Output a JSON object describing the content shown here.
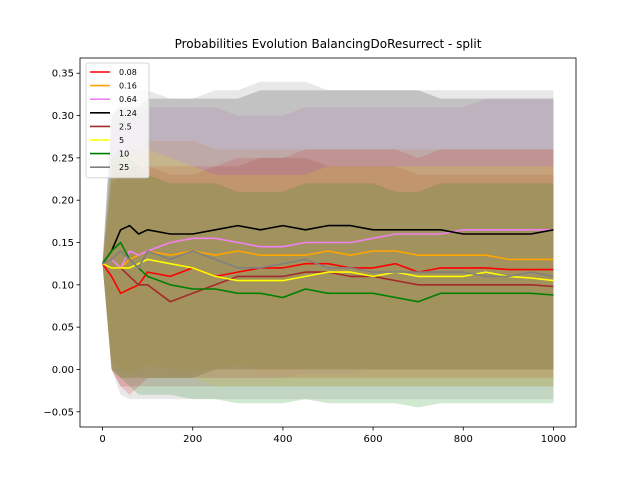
{
  "chart_data": {
    "type": "line",
    "title": "Probabilities Evolution BalancingDoResurrect  - split",
    "xlabel": "",
    "ylabel": "",
    "xlim": [
      -50,
      1050
    ],
    "ylim": [
      -0.068,
      0.368
    ],
    "xticks": [
      0,
      200,
      400,
      600,
      800,
      1000
    ],
    "xtick_labels": [
      "0",
      "200",
      "400",
      "600",
      "800",
      "1000"
    ],
    "yticks": [
      -0.05,
      0.0,
      0.05,
      0.1,
      0.15,
      0.2,
      0.25,
      0.3,
      0.35
    ],
    "ytick_labels": [
      "−0.05",
      "0.00",
      "0.05",
      "0.10",
      "0.15",
      "0.20",
      "0.25",
      "0.30",
      "0.35"
    ],
    "grid": false,
    "legend_position": "top-left",
    "series": [
      {
        "name": "0.08",
        "color": "#ff0000",
        "x": [
          0,
          20,
          40,
          60,
          80,
          100,
          150,
          200,
          250,
          300,
          350,
          400,
          450,
          500,
          550,
          600,
          650,
          700,
          750,
          800,
          850,
          900,
          950,
          1000
        ],
        "y": [
          0.125,
          0.11,
          0.09,
          0.095,
          0.1,
          0.115,
          0.11,
          0.12,
          0.11,
          0.115,
          0.12,
          0.12,
          0.125,
          0.125,
          0.12,
          0.12,
          0.125,
          0.115,
          0.12,
          0.12,
          0.12,
          0.118,
          0.118,
          0.118
        ],
        "band_upper": [
          0.125,
          0.22,
          0.23,
          0.23,
          0.23,
          0.24,
          0.24,
          0.24,
          0.24,
          0.25,
          0.25,
          0.25,
          0.26,
          0.26,
          0.26,
          0.26,
          0.26,
          0.25,
          0.26,
          0.26,
          0.26,
          0.26,
          0.26,
          0.26
        ],
        "band_lower": [
          0.125,
          0.0,
          -0.02,
          -0.03,
          -0.02,
          -0.01,
          -0.01,
          -0.01,
          -0.01,
          -0.01,
          -0.01,
          -0.01,
          -0.01,
          -0.01,
          -0.01,
          -0.01,
          -0.01,
          -0.01,
          -0.01,
          -0.01,
          -0.01,
          -0.01,
          -0.01,
          -0.01
        ]
      },
      {
        "name": "0.16",
        "color": "#ffa500",
        "x": [
          0,
          20,
          40,
          60,
          80,
          100,
          150,
          200,
          250,
          300,
          350,
          400,
          450,
          500,
          550,
          600,
          650,
          700,
          750,
          800,
          850,
          900,
          950,
          1000
        ],
        "y": [
          0.125,
          0.13,
          0.12,
          0.13,
          0.135,
          0.14,
          0.135,
          0.14,
          0.135,
          0.14,
          0.135,
          0.135,
          0.135,
          0.14,
          0.135,
          0.14,
          0.14,
          0.135,
          0.135,
          0.135,
          0.135,
          0.13,
          0.13,
          0.13
        ],
        "band_upper": [
          0.125,
          0.24,
          0.25,
          0.26,
          0.26,
          0.27,
          0.27,
          0.27,
          0.26,
          0.26,
          0.26,
          0.26,
          0.26,
          0.26,
          0.26,
          0.26,
          0.26,
          0.26,
          0.26,
          0.26,
          0.26,
          0.26,
          0.26,
          0.26
        ],
        "band_lower": [
          0.125,
          0.01,
          0.0,
          -0.005,
          0.0,
          0.005,
          0.0,
          0.0,
          0.0,
          0.005,
          0.0,
          0.0,
          0.0,
          0.0,
          0.0,
          0.0,
          0.0,
          0.0,
          0.0,
          0.0,
          0.0,
          0.0,
          0.0,
          0.0
        ]
      },
      {
        "name": "0.64",
        "color": "#ee82ee",
        "x": [
          0,
          20,
          40,
          60,
          80,
          100,
          150,
          200,
          250,
          300,
          350,
          400,
          450,
          500,
          550,
          600,
          650,
          700,
          750,
          800,
          850,
          900,
          950,
          1000
        ],
        "y": [
          0.125,
          0.13,
          0.12,
          0.14,
          0.135,
          0.14,
          0.15,
          0.155,
          0.155,
          0.15,
          0.145,
          0.145,
          0.15,
          0.15,
          0.15,
          0.155,
          0.16,
          0.16,
          0.16,
          0.165,
          0.165,
          0.165,
          0.165,
          0.165
        ],
        "band_upper": [
          0.125,
          0.28,
          0.3,
          0.3,
          0.3,
          0.31,
          0.31,
          0.31,
          0.31,
          0.3,
          0.3,
          0.3,
          0.31,
          0.31,
          0.31,
          0.31,
          0.31,
          0.31,
          0.31,
          0.31,
          0.32,
          0.32,
          0.32,
          0.32
        ],
        "band_lower": [
          0.125,
          0.0,
          -0.01,
          -0.01,
          -0.01,
          -0.01,
          -0.01,
          -0.01,
          -0.01,
          -0.01,
          -0.01,
          -0.01,
          -0.005,
          -0.005,
          -0.005,
          0.0,
          0.0,
          0.0,
          0.0,
          0.0,
          0.0,
          0.0,
          0.0,
          0.0
        ]
      },
      {
        "name": "1.24",
        "color": "#000000",
        "x": [
          0,
          20,
          40,
          60,
          80,
          100,
          150,
          200,
          250,
          300,
          350,
          400,
          450,
          500,
          550,
          600,
          650,
          700,
          750,
          800,
          850,
          900,
          950,
          1000
        ],
        "y": [
          0.125,
          0.14,
          0.165,
          0.17,
          0.16,
          0.165,
          0.16,
          0.16,
          0.165,
          0.17,
          0.165,
          0.17,
          0.165,
          0.17,
          0.17,
          0.165,
          0.165,
          0.165,
          0.165,
          0.16,
          0.16,
          0.16,
          0.16,
          0.165
        ],
        "band_upper": [
          0.125,
          0.3,
          0.31,
          0.31,
          0.31,
          0.32,
          0.32,
          0.32,
          0.32,
          0.32,
          0.33,
          0.33,
          0.33,
          0.33,
          0.33,
          0.33,
          0.33,
          0.33,
          0.32,
          0.32,
          0.32,
          0.32,
          0.32,
          0.32
        ],
        "band_lower": [
          0.125,
          0.0,
          -0.01,
          -0.01,
          -0.01,
          -0.01,
          -0.01,
          -0.01,
          0.0,
          0.0,
          0.0,
          0.0,
          0.0,
          0.0,
          0.0,
          0.0,
          0.0,
          0.0,
          0.0,
          0.0,
          0.0,
          0.0,
          0.0,
          0.0
        ]
      },
      {
        "name": "2.5",
        "color": "#a52a2a",
        "x": [
          0,
          20,
          40,
          60,
          80,
          100,
          150,
          200,
          250,
          300,
          350,
          400,
          450,
          500,
          550,
          600,
          650,
          700,
          750,
          800,
          850,
          900,
          950,
          1000
        ],
        "y": [
          0.125,
          0.12,
          0.12,
          0.11,
          0.1,
          0.1,
          0.08,
          0.09,
          0.1,
          0.11,
          0.11,
          0.11,
          0.115,
          0.115,
          0.11,
          0.11,
          0.105,
          0.1,
          0.1,
          0.1,
          0.1,
          0.1,
          0.1,
          0.098
        ],
        "band_upper": [
          0.125,
          0.23,
          0.24,
          0.24,
          0.24,
          0.24,
          0.23,
          0.23,
          0.24,
          0.24,
          0.25,
          0.25,
          0.25,
          0.24,
          0.24,
          0.24,
          0.24,
          0.23,
          0.23,
          0.23,
          0.23,
          0.23,
          0.23,
          0.23
        ],
        "band_lower": [
          0.125,
          0.0,
          -0.02,
          -0.02,
          -0.02,
          -0.02,
          -0.02,
          -0.02,
          -0.02,
          -0.02,
          -0.02,
          -0.02,
          -0.02,
          -0.02,
          -0.02,
          -0.02,
          -0.02,
          -0.02,
          -0.02,
          -0.02,
          -0.02,
          -0.02,
          -0.02,
          -0.02
        ]
      },
      {
        "name": "5",
        "color": "#ffff00",
        "x": [
          0,
          20,
          40,
          60,
          80,
          100,
          150,
          200,
          250,
          300,
          350,
          400,
          450,
          500,
          550,
          600,
          650,
          700,
          750,
          800,
          850,
          900,
          950,
          1000
        ],
        "y": [
          0.125,
          0.12,
          0.12,
          0.12,
          0.125,
          0.13,
          0.125,
          0.12,
          0.11,
          0.105,
          0.105,
          0.105,
          0.11,
          0.115,
          0.115,
          0.11,
          0.115,
          0.11,
          0.11,
          0.11,
          0.115,
          0.11,
          0.108,
          0.105
        ],
        "band_upper": [
          0.125,
          0.24,
          0.25,
          0.25,
          0.25,
          0.26,
          0.25,
          0.24,
          0.23,
          0.23,
          0.23,
          0.23,
          0.23,
          0.24,
          0.24,
          0.24,
          0.24,
          0.24,
          0.24,
          0.24,
          0.24,
          0.24,
          0.24,
          0.24
        ],
        "band_lower": [
          0.125,
          0.0,
          -0.01,
          -0.01,
          -0.01,
          -0.01,
          -0.01,
          -0.01,
          -0.02,
          -0.02,
          -0.02,
          -0.02,
          -0.02,
          -0.02,
          -0.02,
          -0.02,
          -0.02,
          -0.02,
          -0.02,
          -0.02,
          -0.02,
          -0.02,
          -0.02,
          -0.02
        ]
      },
      {
        "name": "10",
        "color": "#008000",
        "x": [
          0,
          20,
          40,
          60,
          80,
          100,
          150,
          200,
          250,
          300,
          350,
          400,
          450,
          500,
          550,
          600,
          650,
          700,
          750,
          800,
          850,
          900,
          950,
          1000
        ],
        "y": [
          0.125,
          0.14,
          0.15,
          0.13,
          0.12,
          0.11,
          0.1,
          0.095,
          0.095,
          0.09,
          0.09,
          0.085,
          0.095,
          0.09,
          0.09,
          0.09,
          0.085,
          0.08,
          0.09,
          0.09,
          0.09,
          0.09,
          0.09,
          0.088
        ],
        "band_upper": [
          0.125,
          0.25,
          0.26,
          0.25,
          0.24,
          0.23,
          0.22,
          0.22,
          0.22,
          0.21,
          0.21,
          0.21,
          0.22,
          0.22,
          0.22,
          0.22,
          0.21,
          0.21,
          0.22,
          0.22,
          0.22,
          0.22,
          0.22,
          0.22
        ],
        "band_lower": [
          0.125,
          0.0,
          -0.01,
          -0.02,
          -0.03,
          -0.03,
          -0.03,
          -0.035,
          -0.035,
          -0.04,
          -0.04,
          -0.04,
          -0.035,
          -0.04,
          -0.04,
          -0.04,
          -0.04,
          -0.045,
          -0.04,
          -0.04,
          -0.04,
          -0.04,
          -0.04,
          -0.04
        ]
      },
      {
        "name": "25",
        "color": "#808080",
        "x": [
          0,
          20,
          40,
          60,
          80,
          100,
          150,
          200,
          250,
          300,
          350,
          400,
          450,
          500,
          550,
          600,
          650,
          700,
          750,
          800,
          850,
          900,
          950,
          1000
        ],
        "y": [
          0.125,
          0.13,
          0.14,
          0.13,
          0.12,
          0.14,
          0.13,
          0.14,
          0.13,
          0.12,
          0.12,
          0.125,
          0.13,
          0.12,
          0.12,
          0.115,
          0.115,
          0.115,
          0.115,
          0.115,
          0.11,
          0.11,
          0.115,
          0.11
        ],
        "band_upper": [
          0.125,
          0.3,
          0.32,
          0.32,
          0.33,
          0.33,
          0.32,
          0.32,
          0.33,
          0.33,
          0.34,
          0.34,
          0.34,
          0.33,
          0.33,
          0.33,
          0.33,
          0.33,
          0.33,
          0.33,
          0.33,
          0.33,
          0.33,
          0.33
        ],
        "band_lower": [
          0.125,
          0.0,
          -0.03,
          -0.035,
          -0.035,
          -0.035,
          -0.035,
          -0.035,
          -0.035,
          -0.035,
          -0.035,
          -0.035,
          -0.035,
          -0.035,
          -0.035,
          -0.035,
          -0.035,
          -0.035,
          -0.035,
          -0.035,
          -0.035,
          -0.035,
          -0.035,
          -0.035
        ]
      }
    ]
  }
}
